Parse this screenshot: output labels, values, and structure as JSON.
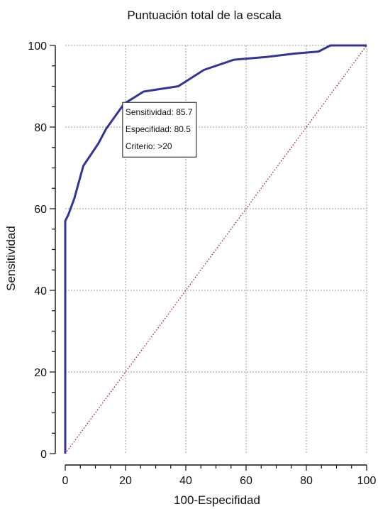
{
  "chart_data": {
    "type": "line",
    "title": "Puntuación total de la escala",
    "xlabel": "100-Especifidad",
    "ylabel": "Sensitividad",
    "xlim": [
      0,
      100
    ],
    "ylim": [
      0,
      100
    ],
    "xticks": [
      0,
      20,
      40,
      60,
      80,
      100
    ],
    "yticks": [
      0,
      20,
      40,
      60,
      80,
      100
    ],
    "grid": true,
    "series": [
      {
        "color": "#33339a",
        "style": "solid",
        "points": [
          [
            0,
            0
          ],
          [
            0,
            57
          ],
          [
            1,
            58.5
          ],
          [
            3,
            62.5
          ],
          [
            6,
            70.5
          ],
          [
            11,
            76
          ],
          [
            13.5,
            79.5
          ],
          [
            19.5,
            85.7
          ],
          [
            26,
            88.7
          ],
          [
            37.5,
            90
          ],
          [
            46,
            94
          ],
          [
            56,
            96.5
          ],
          [
            67,
            97.2
          ],
          [
            76,
            98
          ],
          [
            84,
            98.5
          ],
          [
            88,
            100
          ],
          [
            100,
            100
          ]
        ]
      },
      {
        "color": "#a01818",
        "style": "dotted",
        "points": [
          [
            0,
            0
          ],
          [
            100,
            100
          ]
        ]
      }
    ],
    "annotation": {
      "lines": [
        "Sensitividad: 85.7",
        "Especifidad: 80.5",
        "Criterio: >20"
      ],
      "anchor": [
        19.5,
        85.7
      ]
    }
  }
}
